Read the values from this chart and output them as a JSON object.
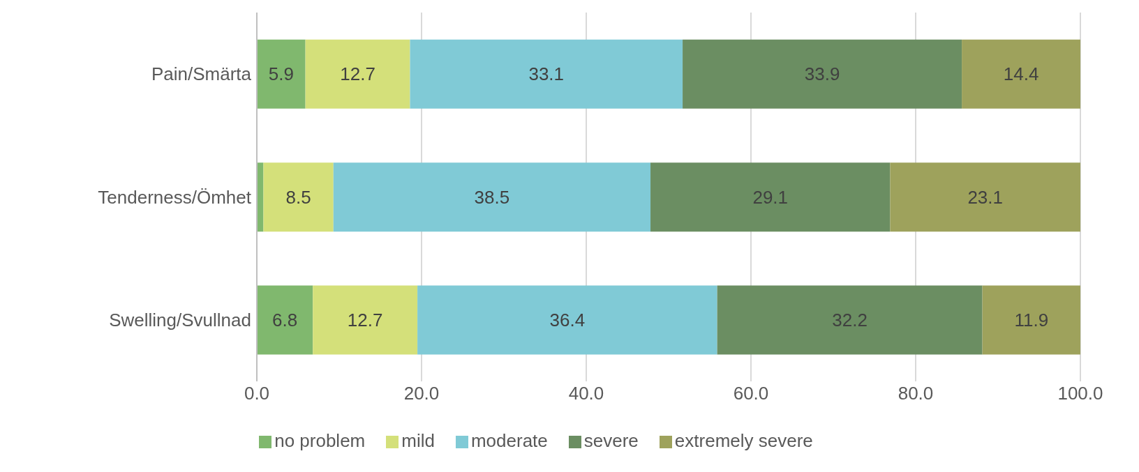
{
  "chart_data": {
    "type": "bar",
    "orientation": "horizontal",
    "stacked": true,
    "categories": [
      "Pain/Smärta",
      "Tenderness/Ömhet",
      "Swelling/Svullnad"
    ],
    "series": [
      {
        "name": "no problem",
        "color": "#80b86e",
        "values": [
          5.9,
          0.8,
          6.8
        ],
        "value_labels": [
          "5.9",
          null,
          "6.8"
        ]
      },
      {
        "name": "mild",
        "color": "#d4e07a",
        "values": [
          12.7,
          8.5,
          12.7
        ],
        "value_labels": [
          "12.7",
          "8.5",
          "12.7"
        ]
      },
      {
        "name": "moderate",
        "color": "#80cad6",
        "values": [
          33.1,
          38.5,
          36.4
        ],
        "value_labels": [
          "33.1",
          "38.5",
          "36.4"
        ]
      },
      {
        "name": "severe",
        "color": "#6b8e62",
        "values": [
          33.9,
          29.1,
          32.2
        ],
        "value_labels": [
          "33.9",
          "29.1",
          "32.2"
        ]
      },
      {
        "name": "extremely severe",
        "color": "#9ea25c",
        "values": [
          14.4,
          23.1,
          11.9
        ],
        "value_labels": [
          "14.4",
          "23.1",
          "11.9"
        ]
      }
    ],
    "xlim": [
      0,
      100
    ],
    "xticks": [
      {
        "value": 0,
        "label": "0.0"
      },
      {
        "value": 20,
        "label": "20.0"
      },
      {
        "value": 40,
        "label": "40.0"
      },
      {
        "value": 60,
        "label": "60.0"
      },
      {
        "value": 80,
        "label": "80.0"
      },
      {
        "value": 100,
        "label": "100.0"
      }
    ],
    "grid": "x",
    "legend": "bottom"
  }
}
